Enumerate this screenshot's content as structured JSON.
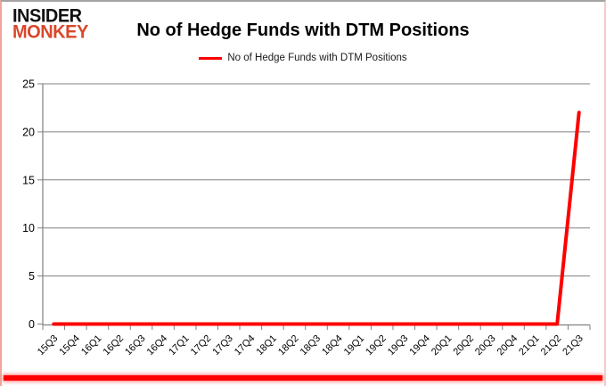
{
  "logo": {
    "line1": "INSIDER",
    "line2": "MONKEY"
  },
  "header": {
    "title": "No of Hedge Funds with DTM Positions"
  },
  "legend": {
    "label": "No of Hedge Funds with DTM Positions"
  },
  "colors": {
    "series_red": "#ff0000",
    "grid_gray": "#808080",
    "axis_gray": "#808080",
    "label_black": "#000000",
    "logo_black": "#111111",
    "logo_red": "#d9472b",
    "border_bottom_red": "#fe0000"
  },
  "chart_data": {
    "type": "line",
    "title": "No of Hedge Funds with DTM Positions",
    "categories": [
      "15Q3",
      "15Q4",
      "16Q1",
      "16Q2",
      "16Q3",
      "16Q4",
      "17Q1",
      "17Q2",
      "17Q3",
      "17Q4",
      "18Q1",
      "18Q2",
      "18Q3",
      "18Q4",
      "19Q1",
      "19Q2",
      "19Q3",
      "19Q4",
      "20Q1",
      "20Q2",
      "20Q3",
      "20Q4",
      "21Q1",
      "21Q2",
      "21Q3"
    ],
    "series": [
      {
        "name": "No of Hedge Funds with DTM Positions",
        "color": "#ff0000",
        "values": [
          0,
          0,
          0,
          0,
          0,
          0,
          0,
          0,
          0,
          0,
          0,
          0,
          0,
          0,
          0,
          0,
          0,
          0,
          0,
          0,
          0,
          0,
          0,
          0,
          22
        ]
      }
    ],
    "ylim": [
      0,
      25
    ],
    "yticks": [
      0,
      5,
      10,
      15,
      20,
      25
    ],
    "grid": true,
    "legend_position": "top-center",
    "xlabel": "",
    "ylabel": ""
  }
}
